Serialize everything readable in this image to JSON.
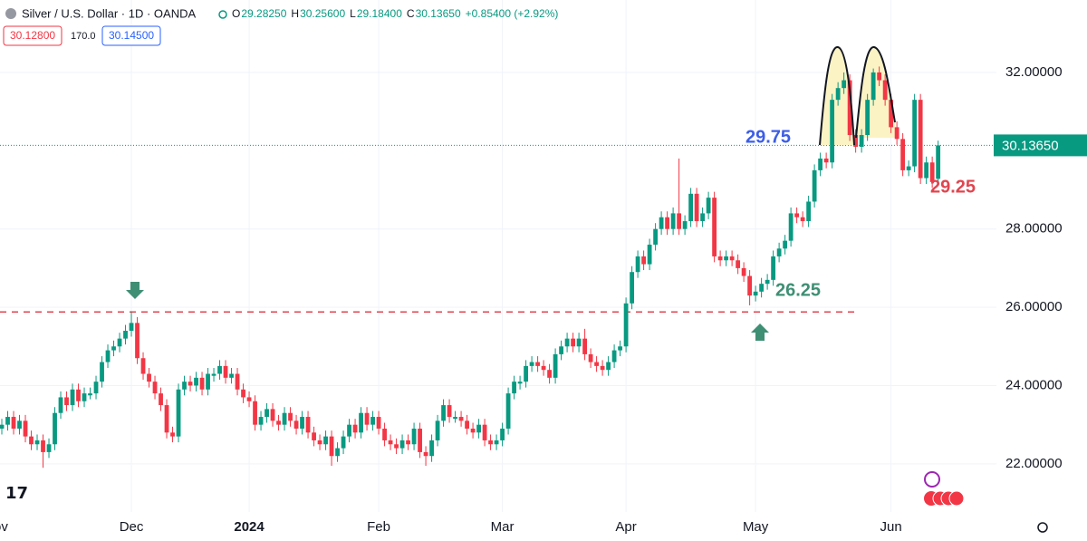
{
  "header": {
    "symbol": "Silver / U.S. Dollar · 1D · OANDA",
    "ohlc": [
      {
        "key": "O",
        "value": "29.28250"
      },
      {
        "key": "H",
        "value": "30.25600"
      },
      {
        "key": "L",
        "value": "29.18400"
      },
      {
        "key": "C",
        "value": "30.13650"
      }
    ],
    "change": "+0.85400 (+2.92%)",
    "bid": "30.12800",
    "spread": "170.0",
    "ask": "30.14500"
  },
  "chart_data": {
    "type": "candlestick",
    "up_color": "#089981",
    "down_color": "#f23645",
    "ylim": [
      20.77,
      33.85
    ],
    "yticks": [
      {
        "value": 22,
        "label": "22.00000"
      },
      {
        "value": 24,
        "label": "24.00000"
      },
      {
        "value": 26,
        "label": "26.00000"
      },
      {
        "value": 28,
        "label": "28.00000"
      },
      {
        "value": 32,
        "label": "32.00000"
      }
    ],
    "xlim": [
      -0.31,
      168.9
    ],
    "xticks": [
      {
        "value": -1,
        "label": "Nov"
      },
      {
        "value": 22,
        "label": "Dec"
      },
      {
        "value": 42,
        "label": "2024"
      },
      {
        "value": 64,
        "label": "Feb"
      },
      {
        "value": 85,
        "label": "Mar"
      },
      {
        "value": 106,
        "label": "Apr"
      },
      {
        "value": 128,
        "label": "May"
      },
      {
        "value": 151,
        "label": "Jun"
      }
    ],
    "grid": true,
    "price_label": {
      "value": 30.1365,
      "label": "30.13650"
    },
    "support_line": 25.88,
    "annotations": [
      {
        "value": 29.75,
        "color": "#3c5ee6"
      },
      {
        "value": 29.25,
        "color": "#e0454f"
      },
      {
        "value": 26.25,
        "color": "#3f8f74"
      }
    ],
    "ohlc": [
      [
        22.9,
        23.15,
        22.75,
        23.0
      ],
      [
        23.0,
        23.35,
        22.85,
        23.2
      ],
      [
        23.2,
        23.35,
        22.75,
        22.9
      ],
      [
        22.9,
        23.25,
        22.75,
        23.1
      ],
      [
        23.1,
        23.25,
        22.55,
        22.7
      ],
      [
        22.7,
        22.85,
        22.35,
        22.5
      ],
      [
        22.5,
        22.75,
        22.35,
        22.6
      ],
      [
        22.6,
        22.75,
        21.9,
        22.3
      ],
      [
        22.3,
        22.65,
        22.15,
        22.5
      ],
      [
        22.5,
        23.45,
        22.35,
        23.3
      ],
      [
        23.3,
        23.85,
        23.15,
        23.7
      ],
      [
        23.7,
        23.85,
        23.35,
        23.5
      ],
      [
        23.5,
        24.05,
        23.35,
        23.9
      ],
      [
        23.9,
        24.05,
        23.45,
        23.6
      ],
      [
        23.6,
        23.95,
        23.45,
        23.8
      ],
      [
        23.75,
        23.95,
        23.65,
        23.8
      ],
      [
        23.8,
        24.25,
        23.65,
        24.1
      ],
      [
        24.1,
        24.75,
        23.95,
        24.6
      ],
      [
        24.6,
        25.05,
        24.45,
        24.9
      ],
      [
        24.9,
        25.15,
        24.75,
        25.0
      ],
      [
        25.0,
        25.35,
        24.85,
        25.2
      ],
      [
        25.2,
        25.55,
        25.05,
        25.4
      ],
      [
        25.4,
        25.9,
        25.25,
        25.6
      ],
      [
        25.6,
        25.75,
        24.55,
        24.7
      ],
      [
        24.7,
        24.85,
        24.15,
        24.3
      ],
      [
        24.3,
        24.45,
        23.95,
        24.1
      ],
      [
        24.1,
        24.25,
        23.65,
        23.8
      ],
      [
        23.8,
        23.95,
        23.35,
        23.5
      ],
      [
        23.5,
        23.65,
        22.65,
        22.8
      ],
      [
        22.8,
        22.95,
        22.55,
        22.7
      ],
      [
        22.7,
        24.05,
        22.55,
        23.9
      ],
      [
        23.9,
        24.25,
        23.75,
        24.1
      ],
      [
        24.1,
        24.25,
        23.85,
        24.0
      ],
      [
        24.0,
        24.35,
        23.85,
        24.2
      ],
      [
        24.2,
        24.35,
        23.75,
        23.9
      ],
      [
        23.9,
        24.45,
        23.75,
        24.3
      ],
      [
        24.25,
        24.45,
        24.1,
        24.3
      ],
      [
        24.3,
        24.65,
        24.15,
        24.5
      ],
      [
        24.5,
        24.65,
        24.05,
        24.2
      ],
      [
        24.2,
        24.45,
        24.05,
        24.3
      ],
      [
        24.3,
        24.45,
        23.75,
        23.9
      ],
      [
        23.9,
        24.05,
        23.55,
        23.7
      ],
      [
        23.7,
        23.85,
        23.45,
        23.6
      ],
      [
        23.6,
        23.75,
        22.85,
        23.0
      ],
      [
        23.0,
        23.35,
        22.85,
        23.2
      ],
      [
        23.2,
        23.55,
        23.05,
        23.4
      ],
      [
        23.4,
        23.55,
        22.95,
        23.1
      ],
      [
        23.1,
        23.25,
        22.85,
        23.0
      ],
      [
        23.0,
        23.45,
        22.85,
        23.3
      ],
      [
        23.3,
        23.45,
        22.95,
        23.1
      ],
      [
        23.1,
        23.25,
        22.75,
        22.9
      ],
      [
        22.9,
        23.35,
        22.75,
        23.2
      ],
      [
        23.2,
        23.35,
        22.65,
        22.8
      ],
      [
        22.8,
        22.95,
        22.45,
        22.6
      ],
      [
        22.6,
        22.75,
        22.35,
        22.5
      ],
      [
        22.5,
        22.85,
        22.35,
        22.7
      ],
      [
        22.7,
        22.85,
        21.95,
        22.2
      ],
      [
        22.2,
        22.55,
        22.05,
        22.4
      ],
      [
        22.4,
        22.85,
        22.25,
        22.7
      ],
      [
        22.7,
        23.15,
        22.55,
        23.0
      ],
      [
        23.0,
        23.15,
        22.65,
        22.8
      ],
      [
        22.8,
        23.45,
        22.65,
        23.3
      ],
      [
        23.3,
        23.45,
        22.85,
        23.0
      ],
      [
        23.0,
        23.35,
        22.85,
        23.2
      ],
      [
        23.2,
        23.35,
        22.75,
        22.9
      ],
      [
        22.9,
        23.05,
        22.45,
        22.6
      ],
      [
        22.6,
        22.75,
        22.35,
        22.5
      ],
      [
        22.5,
        22.65,
        22.25,
        22.4
      ],
      [
        22.4,
        22.75,
        22.25,
        22.6
      ],
      [
        22.6,
        22.75,
        22.35,
        22.5
      ],
      [
        22.5,
        23.05,
        22.35,
        22.9
      ],
      [
        22.9,
        23.05,
        22.15,
        22.3
      ],
      [
        22.3,
        22.45,
        21.95,
        22.2
      ],
      [
        22.2,
        22.75,
        22.05,
        22.6
      ],
      [
        22.6,
        23.25,
        22.45,
        23.1
      ],
      [
        23.1,
        23.65,
        22.95,
        23.5
      ],
      [
        23.5,
        23.65,
        23.05,
        23.2
      ],
      [
        23.15,
        23.35,
        23.05,
        23.2
      ],
      [
        23.2,
        23.35,
        22.95,
        23.1
      ],
      [
        23.1,
        23.25,
        22.75,
        22.9
      ],
      [
        22.9,
        23.05,
        22.65,
        22.8
      ],
      [
        22.8,
        23.15,
        22.65,
        23.0
      ],
      [
        23.0,
        23.15,
        22.45,
        22.6
      ],
      [
        22.6,
        22.75,
        22.35,
        22.5
      ],
      [
        22.5,
        22.75,
        22.35,
        22.6
      ],
      [
        22.6,
        23.05,
        22.45,
        22.9
      ],
      [
        22.9,
        23.95,
        22.75,
        23.8
      ],
      [
        23.8,
        24.25,
        23.65,
        24.1
      ],
      [
        24.05,
        24.25,
        23.9,
        24.1
      ],
      [
        24.1,
        24.65,
        23.95,
        24.5
      ],
      [
        24.5,
        24.75,
        24.35,
        24.6
      ],
      [
        24.6,
        24.75,
        24.35,
        24.5
      ],
      [
        24.5,
        24.65,
        24.25,
        24.4
      ],
      [
        24.4,
        24.55,
        24.05,
        24.2
      ],
      [
        24.2,
        24.95,
        24.05,
        24.8
      ],
      [
        24.8,
        25.15,
        24.65,
        25.0
      ],
      [
        25.0,
        25.35,
        24.85,
        25.2
      ],
      [
        25.2,
        25.35,
        24.85,
        25.0
      ],
      [
        25.0,
        25.35,
        24.85,
        25.2
      ],
      [
        25.2,
        25.45,
        24.65,
        24.8
      ],
      [
        24.8,
        24.95,
        24.45,
        24.6
      ],
      [
        24.6,
        24.75,
        24.35,
        24.5
      ],
      [
        24.5,
        24.65,
        24.25,
        24.4
      ],
      [
        24.4,
        24.75,
        24.25,
        24.6
      ],
      [
        24.6,
        25.05,
        24.45,
        24.9
      ],
      [
        24.9,
        25.15,
        24.75,
        25.0
      ],
      [
        25.0,
        26.25,
        24.85,
        26.1
      ],
      [
        26.1,
        27.05,
        25.95,
        26.9
      ],
      [
        26.9,
        27.45,
        26.75,
        27.3
      ],
      [
        27.3,
        27.45,
        26.95,
        27.1
      ],
      [
        27.1,
        27.75,
        26.95,
        27.6
      ],
      [
        27.6,
        28.15,
        27.45,
        28.0
      ],
      [
        28.0,
        28.45,
        27.85,
        28.3
      ],
      [
        28.3,
        28.45,
        27.85,
        28.0
      ],
      [
        28.0,
        28.55,
        27.85,
        28.4
      ],
      [
        28.4,
        29.8,
        27.85,
        28.0
      ],
      [
        28.0,
        28.35,
        27.85,
        28.2
      ],
      [
        28.2,
        29.05,
        28.05,
        28.9
      ],
      [
        28.9,
        29.05,
        28.05,
        28.2
      ],
      [
        28.2,
        28.55,
        28.05,
        28.4
      ],
      [
        28.4,
        28.95,
        28.25,
        28.8
      ],
      [
        28.8,
        28.95,
        27.15,
        27.3
      ],
      [
        27.3,
        27.45,
        27.05,
        27.2
      ],
      [
        27.2,
        27.45,
        27.05,
        27.3
      ],
      [
        27.3,
        27.45,
        27.05,
        27.2
      ],
      [
        27.2,
        27.35,
        26.85,
        27.0
      ],
      [
        27.0,
        27.15,
        26.65,
        26.8
      ],
      [
        26.8,
        26.95,
        26.05,
        26.3
      ],
      [
        26.3,
        26.55,
        26.15,
        26.4
      ],
      [
        26.4,
        26.75,
        26.25,
        26.6
      ],
      [
        26.6,
        26.85,
        26.45,
        26.7
      ],
      [
        26.7,
        27.45,
        26.55,
        27.3
      ],
      [
        27.3,
        27.65,
        27.15,
        27.5
      ],
      [
        27.5,
        27.85,
        27.35,
        27.7
      ],
      [
        27.7,
        28.55,
        27.55,
        28.4
      ],
      [
        28.4,
        28.55,
        28.15,
        28.3
      ],
      [
        28.3,
        28.45,
        28.05,
        28.2
      ],
      [
        28.2,
        28.85,
        28.05,
        28.7
      ],
      [
        28.7,
        29.65,
        28.55,
        29.5
      ],
      [
        29.5,
        29.95,
        29.35,
        29.8
      ],
      [
        29.8,
        29.95,
        29.55,
        29.7
      ],
      [
        29.7,
        31.45,
        29.55,
        31.3
      ],
      [
        31.3,
        31.75,
        31.15,
        31.6
      ],
      [
        31.6,
        32.0,
        31.45,
        31.8
      ],
      [
        31.8,
        31.95,
        30.25,
        30.4
      ],
      [
        30.4,
        30.55,
        29.95,
        30.1
      ],
      [
        30.1,
        30.55,
        29.95,
        30.4
      ],
      [
        30.4,
        31.45,
        30.25,
        31.3
      ],
      [
        31.3,
        32.1,
        31.15,
        32.0
      ],
      [
        32.0,
        32.15,
        31.65,
        31.8
      ],
      [
        31.8,
        31.95,
        31.15,
        31.3
      ],
      [
        31.3,
        31.45,
        30.45,
        30.6
      ],
      [
        30.6,
        30.75,
        30.15,
        30.3
      ],
      [
        30.3,
        30.45,
        29.35,
        29.5
      ],
      [
        29.5,
        29.75,
        29.35,
        29.6
      ],
      [
        29.6,
        31.45,
        29.45,
        31.3
      ],
      [
        31.3,
        31.45,
        29.15,
        29.3
      ],
      [
        29.3,
        29.85,
        29.15,
        29.7
      ],
      [
        29.7,
        29.85,
        29.05,
        29.2
      ],
      [
        29.2825,
        30.256,
        29.184,
        30.1365
      ]
    ]
  }
}
